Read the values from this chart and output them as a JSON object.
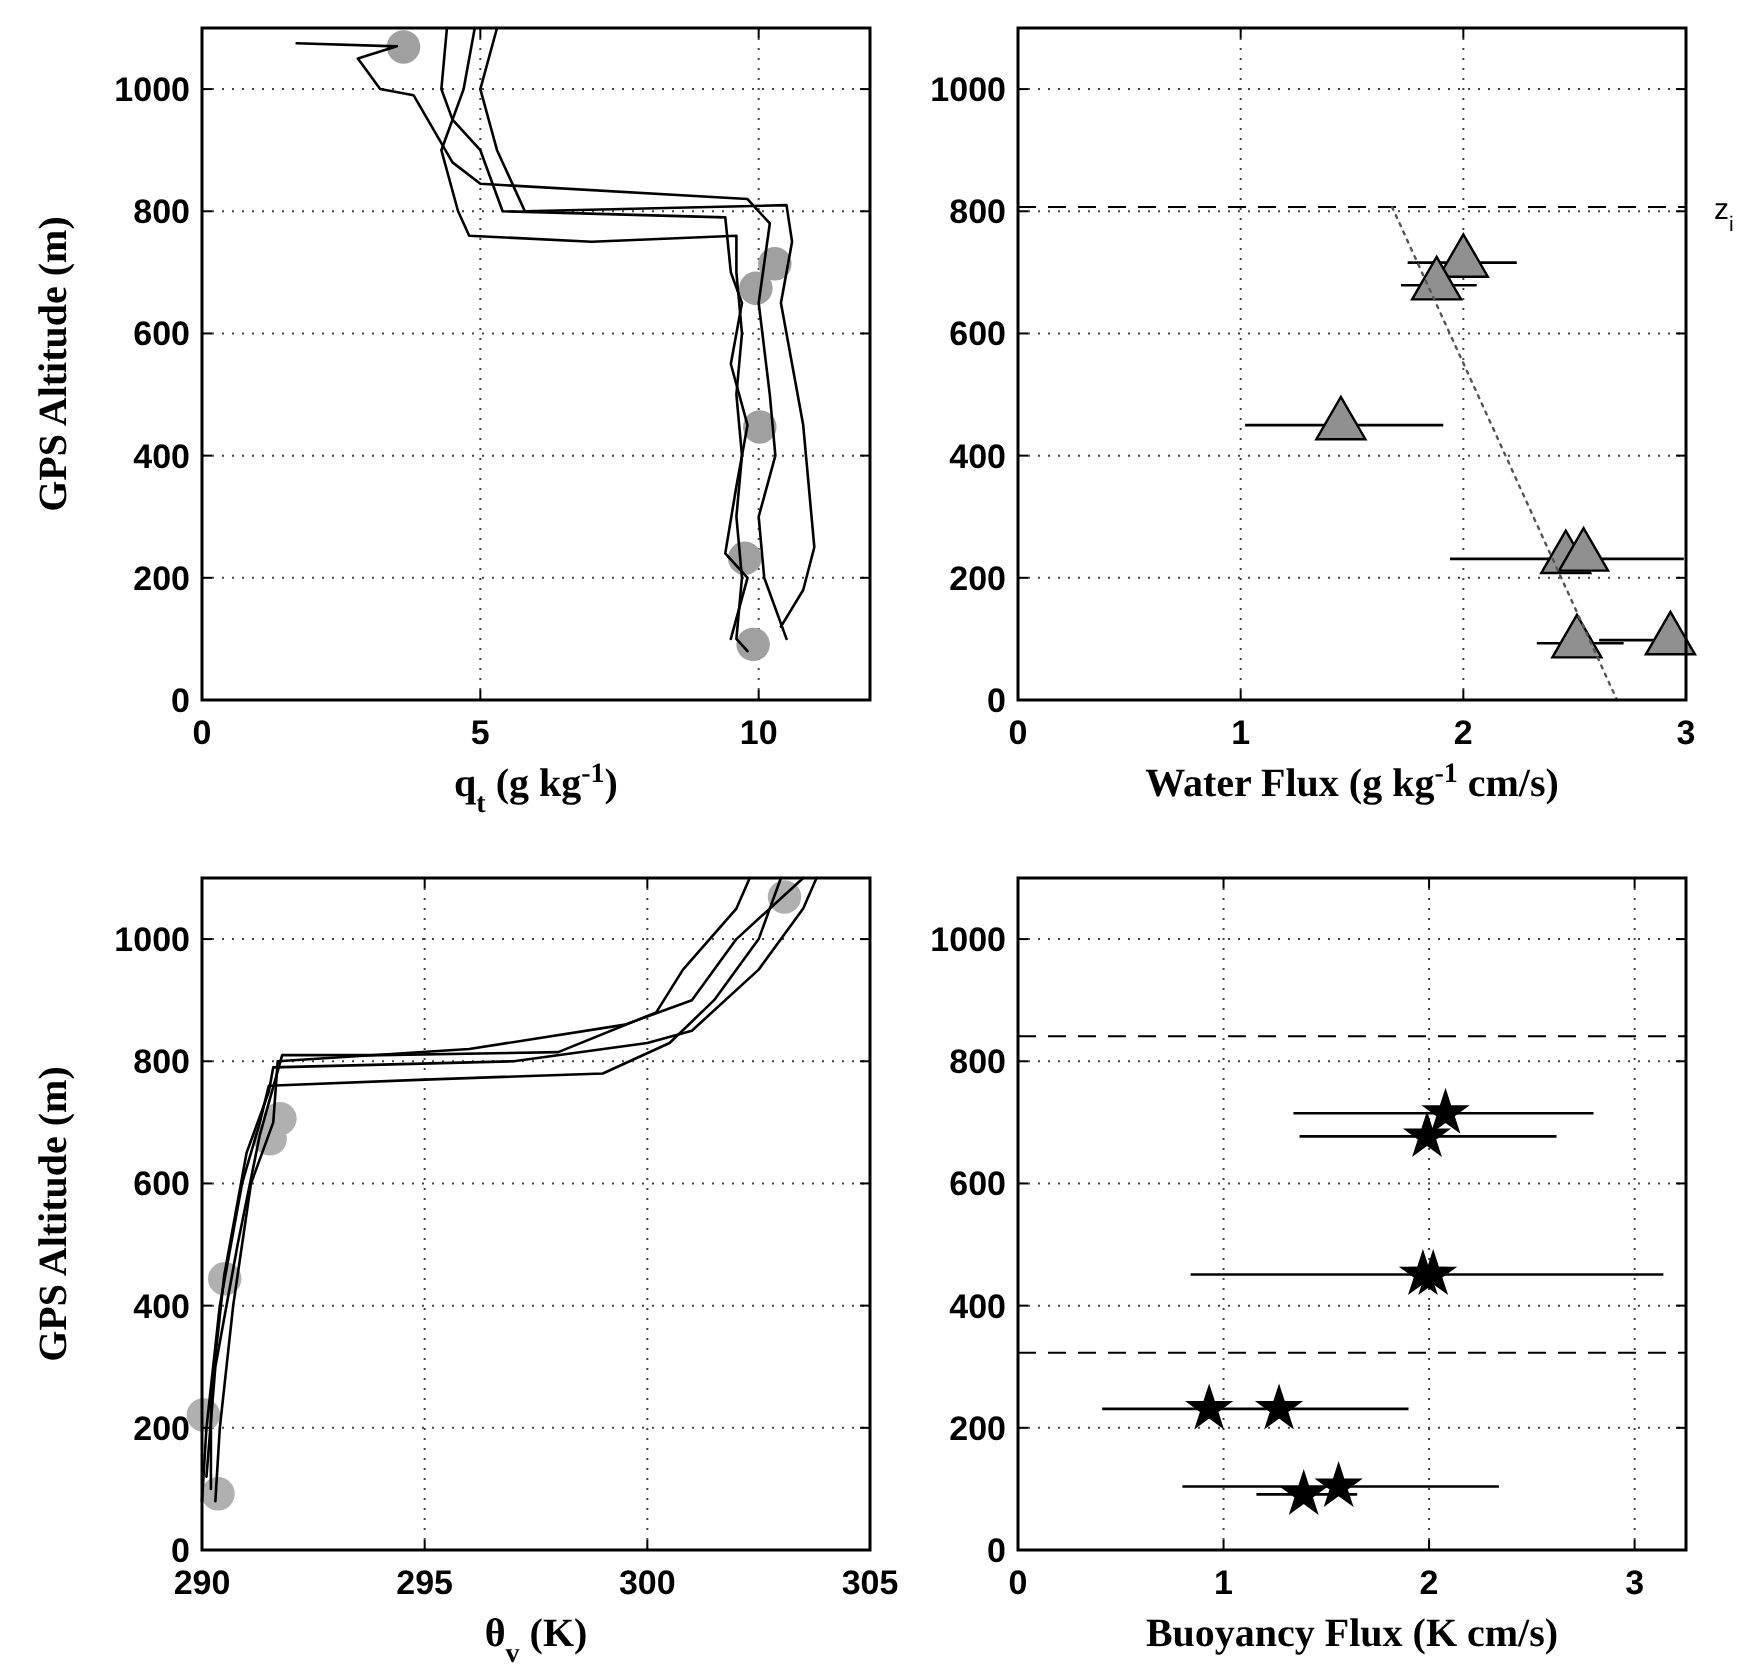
{
  "chart_data": [
    {
      "type": "line",
      "xlabel": "q$_{t}$  (g kg$^{-1}$)",
      "ylabel": "GPS Altitude (m)",
      "xlim": [
        0,
        12
      ],
      "xticks": [
        0,
        5,
        10
      ],
      "ylim": [
        0,
        1100
      ],
      "yticks": [
        0,
        200,
        400,
        600,
        800,
        1000
      ],
      "grid": true,
      "series": [
        {
          "color": "#000000",
          "x": [
            4.9,
            4.7,
            4.3,
            4.6,
            4.8,
            7.0,
            9.6,
            9.6,
            9.7,
            9.6,
            9.7,
            9.6,
            9.7,
            9.6,
            9.8
          ],
          "values": [
            1100,
            1000,
            900,
            800,
            760,
            750,
            760,
            700,
            600,
            500,
            400,
            300,
            200,
            100,
            80
          ]
        },
        {
          "color": "#000000",
          "x": [
            5.3,
            5.0,
            5.3,
            5.8,
            10.5,
            10.6,
            10.4,
            10.6,
            10.8,
            10.9,
            11.0,
            10.8,
            10.4
          ],
          "values": [
            1100,
            1000,
            900,
            800,
            810,
            750,
            650,
            550,
            450,
            350,
            250,
            180,
            120
          ]
        },
        {
          "color": "#000000",
          "x": [
            1.7,
            3.5,
            2.8,
            3.2,
            3.8,
            4.5,
            5.0,
            9.8,
            10.2,
            10.0,
            10.2,
            10.3,
            10.0,
            10.1,
            10.5
          ],
          "values": [
            1075,
            1070,
            1050,
            1000,
            990,
            880,
            845,
            820,
            780,
            650,
            500,
            400,
            300,
            200,
            100
          ]
        },
        {
          "color": "#000000",
          "x": [
            4.4,
            4.3,
            4.5,
            5.0,
            5.4,
            9.4,
            9.5,
            9.7,
            9.5,
            9.8,
            9.6,
            9.4,
            9.8,
            9.5
          ],
          "values": [
            1100,
            1000,
            950,
            900,
            800,
            790,
            700,
            650,
            550,
            450,
            350,
            240,
            200,
            100
          ]
        },
        {
          "type": "scatter",
          "color": "#a0a0a0",
          "marker": "circle",
          "x": [
            3.62,
            10.29,
            9.95,
            10.02,
            9.75,
            9.9
          ],
          "values": [
            1069,
            714,
            674,
            447,
            232,
            91
          ]
        }
      ]
    },
    {
      "type": "scatter",
      "xlabel": "Water Flux  (g kg$^{-1}$ cm/s)",
      "xlim": [
        0,
        3
      ],
      "xticks": [
        0,
        1,
        2,
        3
      ],
      "ylim": [
        0,
        1100
      ],
      "yticks": [
        0,
        200,
        400,
        600,
        800,
        1000
      ],
      "grid": true,
      "ref_lines": [
        {
          "axis": "y",
          "value": 807,
          "label": "z$_{i}$",
          "line_style": "dashed"
        }
      ],
      "series": [
        {
          "color": "#909090",
          "marker": "triangle",
          "x": [
            2.0,
            1.88,
            1.45,
            2.46,
            2.54,
            2.51,
            2.93
          ],
          "values": [
            716,
            679,
            450,
            231,
            235,
            93,
            98
          ],
          "xerrors": [
            [
              1.75,
              2.24
            ],
            [
              1.72,
              2.06
            ],
            [
              1.02,
              1.91
            ],
            [
              1.94,
              2.99
            ],
            null,
            [
              2.33,
              2.72
            ],
            [
              2.61,
              2.99
            ]
          ]
        },
        {
          "type": "line",
          "color": "#555555",
          "line_style": "dotted",
          "x": [
            1.68,
            2.69
          ],
          "values": [
            807,
            0
          ]
        }
      ]
    },
    {
      "type": "line",
      "xlabel": "θ$_{v}$  (K)",
      "ylabel": "GPS Altitude (m)",
      "xlim": [
        290,
        305
      ],
      "xticks": [
        290,
        295,
        300,
        305
      ],
      "ylim": [
        0,
        1100
      ],
      "yticks": [
        0,
        200,
        400,
        600,
        800,
        1000
      ],
      "grid": true,
      "series": [
        {
          "color": "#000000",
          "x": [
            290.0,
            290.1,
            290.4,
            290.9,
            291.3,
            291.5,
            295,
            299,
            300.5,
            301.5,
            302.5,
            303
          ],
          "values": [
            80,
            200,
            400,
            600,
            700,
            760,
            770,
            780,
            830,
            900,
            1000,
            1100
          ]
        },
        {
          "color": "#000000",
          "x": [
            290.3,
            290.4,
            290.7,
            291.1,
            291.6,
            291.7,
            296,
            299.5,
            301,
            302,
            303.5
          ],
          "values": [
            80,
            200,
            400,
            600,
            700,
            800,
            820,
            860,
            900,
            1000,
            1100
          ]
        },
        {
          "color": "#000000",
          "x": [
            290.2,
            290.2,
            290.5,
            291.0,
            291.5,
            291.6,
            297,
            300,
            301,
            302.5,
            303.5,
            303.8
          ],
          "values": [
            100,
            250,
            450,
            650,
            750,
            790,
            800,
            830,
            850,
            950,
            1050,
            1100
          ]
        },
        {
          "color": "#000000",
          "x": [
            290.1,
            290.3,
            290.8,
            291.3,
            291.8,
            294,
            298,
            300.2,
            300.8,
            302.0,
            302.3
          ],
          "values": [
            120,
            300,
            500,
            680,
            810,
            810,
            815,
            880,
            950,
            1050,
            1100
          ]
        },
        {
          "type": "scatter",
          "color": "#b0b0b0",
          "marker": "circle",
          "x": [
            303.08,
            291.75,
            291.53,
            290.51,
            290.03,
            290.36
          ],
          "values": [
            1069,
            706,
            673,
            444,
            221,
            92
          ]
        }
      ]
    },
    {
      "type": "scatter",
      "xlabel": "Buoyancy Flux  (K cm/s)",
      "xlim": [
        0,
        3.25
      ],
      "xticks": [
        0,
        1,
        2,
        3
      ],
      "ylim": [
        0,
        1100
      ],
      "yticks": [
        0,
        200,
        400,
        600,
        800,
        1000
      ],
      "grid": true,
      "ref_lines": [
        {
          "axis": "y",
          "value": 841,
          "line_style": "dashed"
        },
        {
          "axis": "y",
          "value": 323,
          "line_style": "dashed"
        }
      ],
      "series": [
        {
          "color": "#000000",
          "marker": "star",
          "x": [
            2.08,
            1.99,
            1.97,
            2.02,
            0.93,
            1.27,
            1.39,
            1.56
          ],
          "values": [
            715,
            677,
            451,
            451,
            231,
            231,
            91,
            104
          ],
          "xerrors": [
            [
              1.34,
              2.8
            ],
            [
              1.37,
              2.62
            ],
            [
              0.84,
              3.14
            ],
            null,
            [
              0.41,
              1.9
            ],
            null,
            [
              1.16,
              1.65
            ],
            [
              0.8,
              2.34
            ]
          ]
        }
      ]
    }
  ]
}
